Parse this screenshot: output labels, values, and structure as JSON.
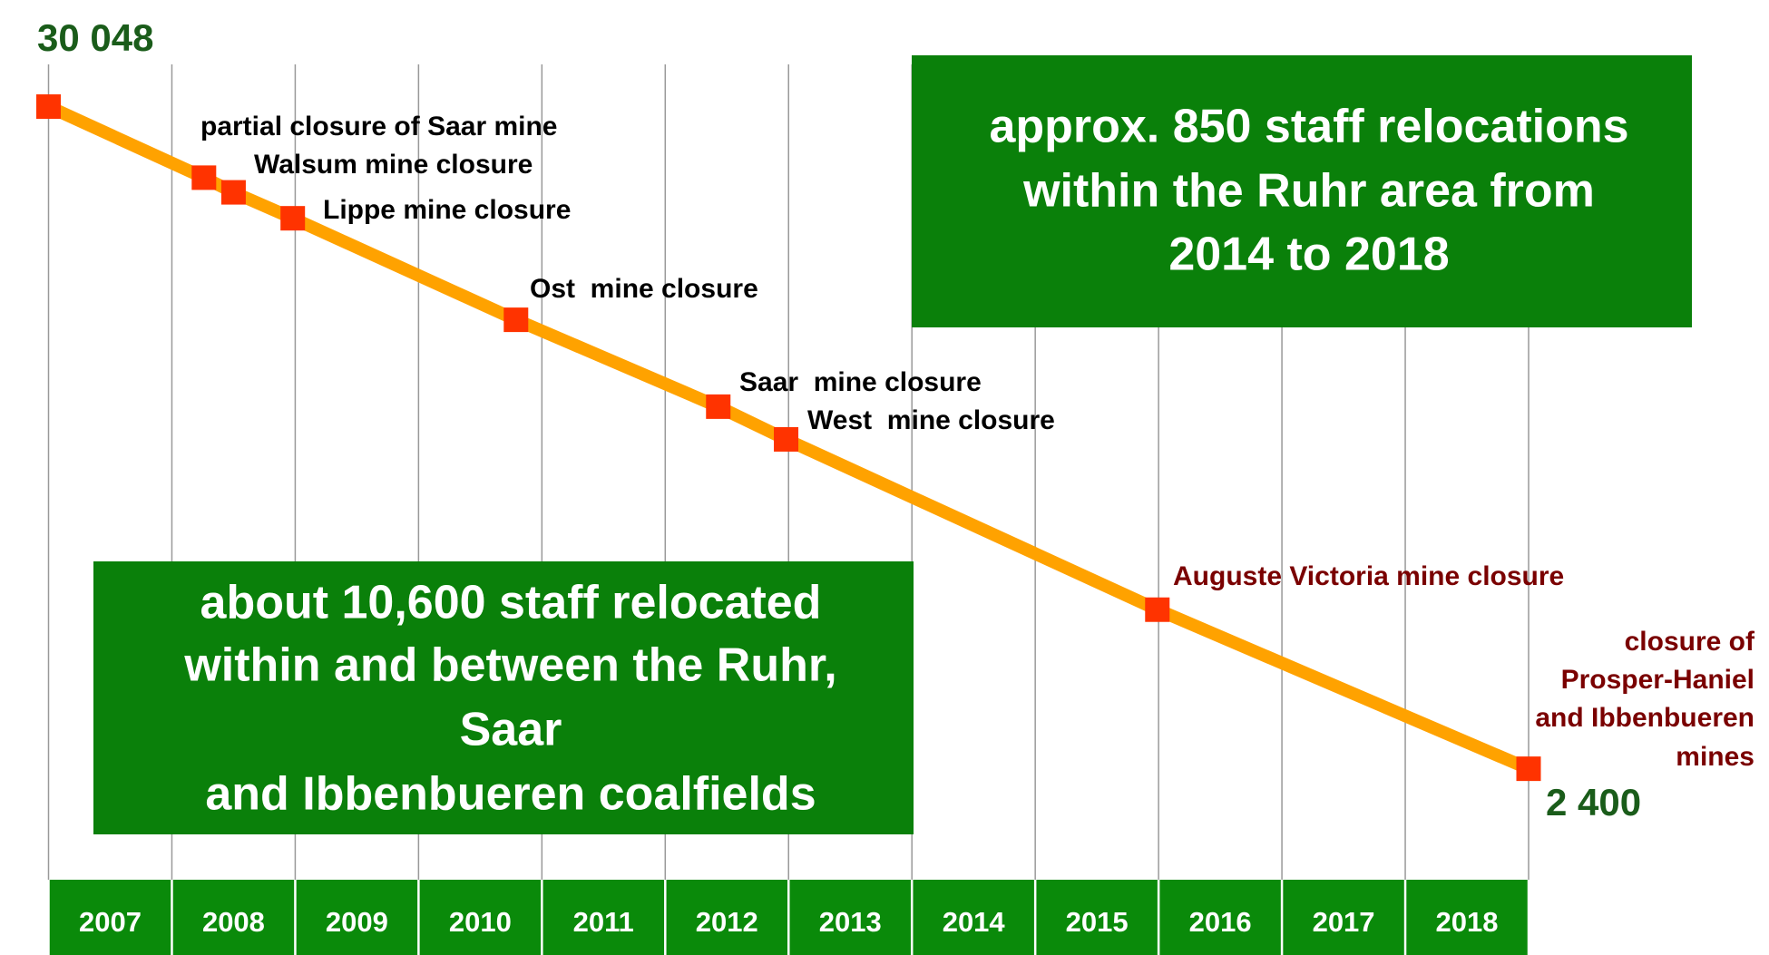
{
  "chart_data": {
    "type": "line",
    "x": [
      2007.0,
      2008.26,
      2008.5,
      2008.98,
      2010.79,
      2012.43,
      2012.98,
      2015.99,
      2019.0
    ],
    "values": [
      30048,
      27081,
      26468,
      25385,
      21146,
      17519,
      16153,
      9042,
      2400
    ],
    "value_labels": [
      "30 048",
      null,
      null,
      null,
      null,
      null,
      null,
      null,
      "2 400"
    ],
    "annotations": [
      null,
      "partial closure of Saar mine",
      "Walsum mine closure",
      "Lippe mine closure",
      "Ost  mine closure",
      "Saar  mine closure",
      "West  mine closure",
      "Auguste Victoria mine closure",
      [
        "closure of",
        "Prosper-Haniel",
        "and Ibbenbueren",
        "mines"
      ]
    ],
    "annotation_colors": [
      null,
      "#000000",
      "#000000",
      "#000000",
      "#000000",
      "#000000",
      "#000000",
      "#7a0000",
      "#7a0000"
    ],
    "categories": [
      "2007",
      "2008",
      "2009",
      "2010",
      "2011",
      "2012",
      "2013",
      "2014",
      "2015",
      "2016",
      "2017",
      "2018"
    ],
    "xlim": [
      2007,
      2019
    ],
    "xticks": [
      2007,
      2008,
      2009,
      2010,
      2011,
      2012,
      2013,
      2014,
      2015,
      2016,
      2017,
      2018,
      2019
    ],
    "ylim": [
      0,
      32000
    ],
    "grid": true,
    "color": "#ffa200",
    "marker_color": "#ff3300",
    "boxes": [
      {
        "lines": [
          "approx. 850 staff relocations",
          "within the Ruhr area from",
          "2014 to 2018"
        ]
      },
      {
        "lines": [
          "about 10,600 staff relocated",
          "within and between the Ruhr,",
          "Saar",
          "and Ibbenbueren coalfields"
        ]
      }
    ]
  }
}
